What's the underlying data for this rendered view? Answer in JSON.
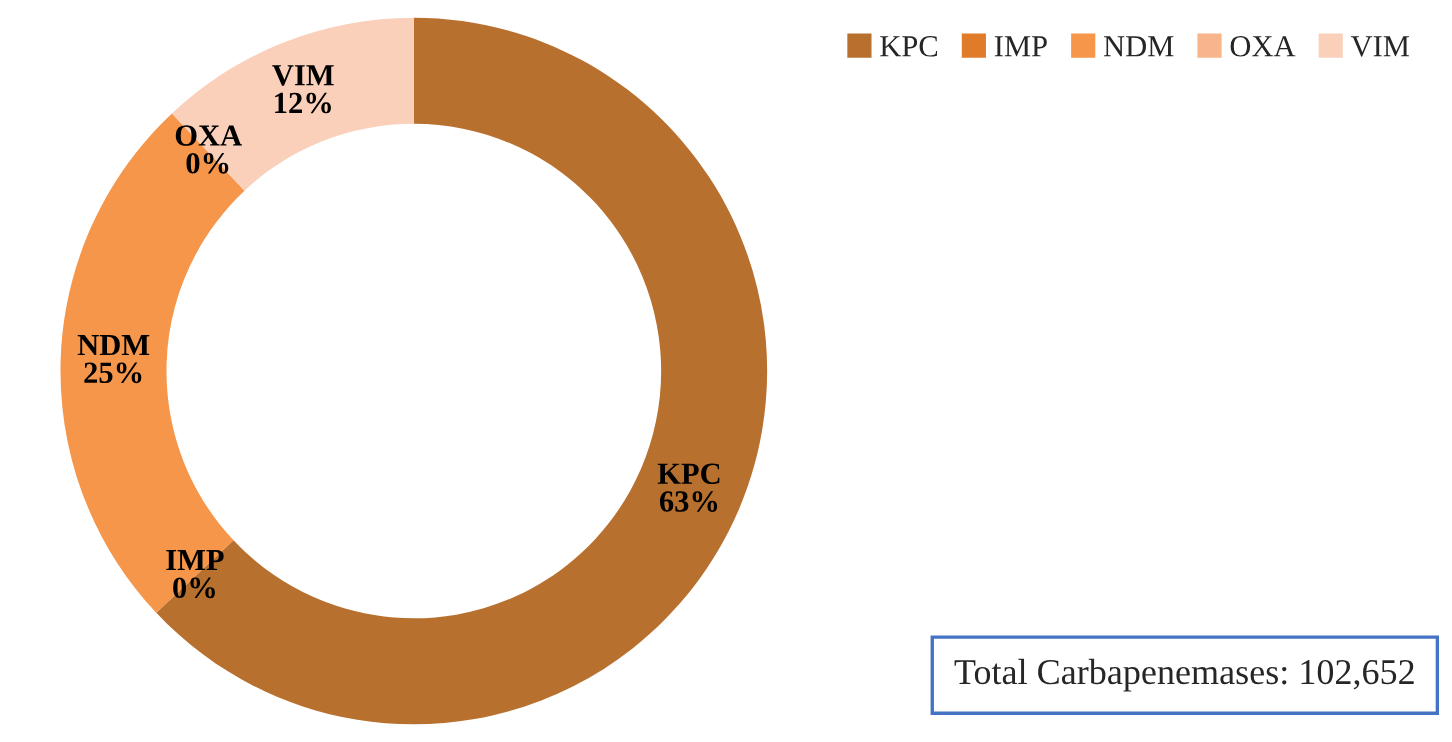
{
  "chart_data": {
    "type": "donut",
    "categories": [
      "KPC",
      "IMP",
      "NDM",
      "OXA",
      "VIM"
    ],
    "values": [
      63,
      0,
      25,
      0,
      12
    ],
    "colors": [
      "#b8702f",
      "#e07b2a",
      "#f5964a",
      "#f8b48a",
      "#fad0bb"
    ],
    "value_labels": [
      "63%",
      "0%",
      "25%",
      "0%",
      "12%"
    ],
    "legend": "top right",
    "annotations": [
      "Total Carbapenemases: 102,652"
    ]
  }
}
